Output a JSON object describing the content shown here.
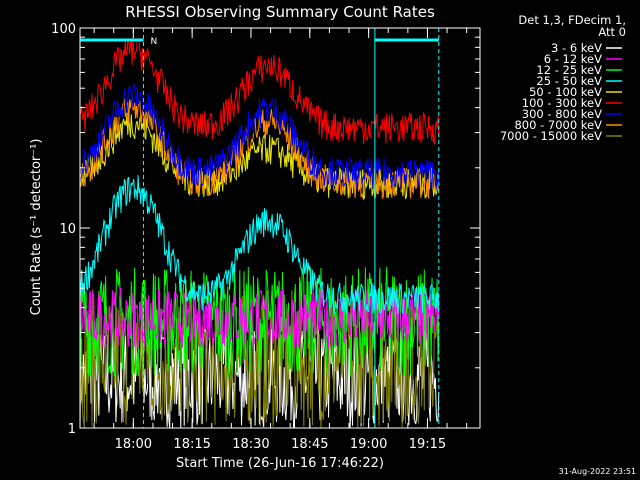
{
  "chart_data": {
    "type": "line",
    "title": "RHESSI Observing Summary Count Rates",
    "xlabel": "Start Time (26-Jun-16 17:46:22)",
    "ylabel": "Count Rate (s⁻¹ detector⁻¹)",
    "y_scale": "log",
    "ylim": [
      1,
      100
    ],
    "xlim_min": [
      0,
      102
    ],
    "x_ticks": [
      {
        "label": "18:00",
        "t": 13.6
      },
      {
        "label": "18:15",
        "t": 28.6
      },
      {
        "label": "18:30",
        "t": 43.6
      },
      {
        "label": "18:45",
        "t": 58.6
      },
      {
        "label": "19:00",
        "t": 73.6
      },
      {
        "label": "19:15",
        "t": 88.6
      }
    ],
    "y_ticks": [
      {
        "label": "1",
        "v": 1
      },
      {
        "label": "10",
        "v": 10
      },
      {
        "label": "100",
        "v": 100
      }
    ],
    "legend_header": [
      "Det 1,3, FDecim 1,",
      "Att 0"
    ],
    "legend_position": "right",
    "series": [
      {
        "name": "3 - 6 keV",
        "color": "#ffffff",
        "level": "low"
      },
      {
        "name": "6 - 12 keV",
        "color": "#ff00ff",
        "level": "low"
      },
      {
        "name": "12 - 25 keV",
        "color": "#00ff00",
        "level": "low"
      },
      {
        "name": "25 - 50 keV",
        "color": "#00ffff",
        "peaks": [
          16,
          11,
          4.5
        ]
      },
      {
        "name": "50 - 100 keV",
        "color": "#e6e600",
        "peaks": [
          34,
          25,
          17
        ]
      },
      {
        "name": "100 - 300 keV",
        "color": "#ff0000",
        "peaks": [
          78,
          65,
          32
        ]
      },
      {
        "name": "300 - 800 keV",
        "color": "#0000ff",
        "peaks": [
          46,
          40,
          19
        ]
      },
      {
        "name": "800 - 7000 keV",
        "color": "#ff8c00",
        "peaks": [
          40,
          34,
          17
        ]
      },
      {
        "name": "7000 - 15000 keV",
        "color": "#808000",
        "level": "low"
      }
    ],
    "markers": [
      {
        "label": "N",
        "start": 0,
        "end": 16.2
      },
      {
        "label": "",
        "start": 75.2,
        "end": 91.5
      }
    ],
    "timestamp": "31-Aug-2022 23:51"
  }
}
